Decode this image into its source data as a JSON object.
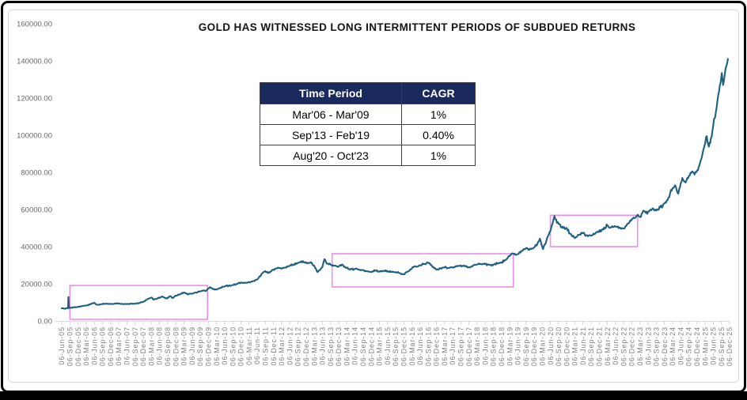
{
  "colors": {
    "line": "#1d6080",
    "highlight_box": "#f08be8",
    "table_header_bg": "#1b2a5e",
    "table_header_text": "#ffffff",
    "axis_label": "#7f7f7f",
    "y_label": "#666666",
    "frame_border": "#d9d9d9",
    "outer_border": "#000000"
  },
  "table": {
    "header": {
      "time_period": "Time Period",
      "cagr": "CAGR"
    },
    "rows": [
      {
        "period": "Mar'06 - Mar'09",
        "cagr": "1%"
      },
      {
        "period": "Sep'13 - Feb'19",
        "cagr": "0.40%"
      },
      {
        "period": "Aug'20 - Oct'23",
        "cagr": "1%"
      }
    ]
  },
  "chart_data": {
    "type": "line",
    "title": "GOLD HAS WITNESSED LONG INTERMITTENT PERIODS OF SUBDUED RETURNS",
    "xlabel": "",
    "ylabel": "",
    "ylim": [
      0,
      160000
    ],
    "grid": false,
    "legend": "none",
    "y_ticks": [
      [
        0,
        "0.00"
      ],
      [
        20000,
        "20000.00"
      ],
      [
        40000,
        "40000.00"
      ],
      [
        60000,
        "60000.00"
      ],
      [
        80000,
        "80000.00"
      ],
      [
        100000,
        "100000.00"
      ],
      [
        120000,
        "120000.00"
      ],
      [
        140000,
        "140000.00"
      ],
      [
        160000,
        "160000.00"
      ]
    ],
    "x_labels": [
      "06-Jun-05",
      "06-Sep-05",
      "06-Dec-05",
      "06-Mar-06",
      "06-Jun-06",
      "06-Sep-06",
      "06-Dec-06",
      "06-Mar-07",
      "06-Jun-07",
      "06-Sep-07",
      "06-Dec-07",
      "06-Mar-08",
      "06-Jun-08",
      "06-Sep-08",
      "06-Dec-08",
      "06-Mar-09",
      "06-Jun-09",
      "06-Sep-09",
      "06-Dec-09",
      "06-Mar-10",
      "06-Jun-10",
      "06-Sep-10",
      "06-Dec-10",
      "06-Mar-11",
      "06-Jun-11",
      "06-Sep-11",
      "06-Dec-11",
      "06-Mar-12",
      "06-Jun-12",
      "06-Sep-12",
      "06-Dec-12",
      "06-Mar-13",
      "06-Jun-13",
      "06-Sep-13",
      "06-Dec-13",
      "06-Mar-14",
      "06-Jun-14",
      "06-Sep-14",
      "06-Dec-14",
      "06-Mar-15",
      "06-Jun-15",
      "06-Sep-15",
      "06-Dec-15",
      "06-Mar-16",
      "06-Jun-16",
      "06-Sep-16",
      "06-Dec-16",
      "06-Mar-17",
      "06-Jun-17",
      "06-Sep-17",
      "06-Dec-17",
      "06-Mar-18",
      "06-Jun-18",
      "06-Sep-18",
      "06-Dec-18",
      "06-Mar-19",
      "06-Jun-19",
      "06-Sep-19",
      "06-Dec-19",
      "06-Mar-20",
      "06-Jun-20",
      "06-Sep-20",
      "06-Dec-20",
      "06-Mar-21",
      "06-Jun-21",
      "06-Sep-21",
      "06-Dec-21",
      "06-Mar-22",
      "06-Jun-22",
      "06-Sep-22",
      "06-Dec-22",
      "06-Mar-23",
      "06-Jun-23",
      "06-Sep-23",
      "06-Dec-23",
      "06-Mar-24",
      "06-Jun-24",
      "06-Sep-24",
      "06-Dec-24",
      "06-Mar-25",
      "06-Jun-25",
      "06-Sep-25",
      "06-Dec-25"
    ],
    "x_unit": "quarter index relative to 06-Jun-05",
    "highlight_boxes": [
      {
        "q0": 1.0,
        "q1": 17.9,
        "v_low": 850,
        "v_high": 19100
      },
      {
        "q0": 33.2,
        "q1": 55.45,
        "v_low": 18300,
        "v_high": 36200
      },
      {
        "q0": 60.0,
        "q1": 70.7,
        "v_low": 40000,
        "v_high": 56900
      }
    ],
    "series": [
      {
        "name": "gold-price",
        "anchors": [
          [
            0,
            6800
          ],
          [
            0.3,
            6600
          ],
          [
            0.6,
            6900
          ],
          [
            0.78,
            6900
          ],
          [
            0.82,
            12900
          ],
          [
            0.88,
            7000
          ],
          [
            1,
            7050
          ],
          [
            1.5,
            7300
          ],
          [
            2,
            7600
          ],
          [
            2.5,
            8000
          ],
          [
            3,
            8300
          ],
          [
            3.5,
            9000
          ],
          [
            4,
            9700
          ],
          [
            4.3,
            8700
          ],
          [
            5,
            9100
          ],
          [
            5.5,
            9250
          ],
          [
            6,
            9150
          ],
          [
            6.5,
            9300
          ],
          [
            7,
            9450
          ],
          [
            7.5,
            9050
          ],
          [
            8,
            9100
          ],
          [
            8.5,
            9350
          ],
          [
            9,
            9250
          ],
          [
            9.5,
            9700
          ],
          [
            10,
            10300
          ],
          [
            10.6,
            11900
          ],
          [
            11,
            12600
          ],
          [
            11.3,
            11500
          ],
          [
            11.7,
            12100
          ],
          [
            12,
            12400
          ],
          [
            12.4,
            13100
          ],
          [
            12.8,
            12100
          ],
          [
            13,
            12200
          ],
          [
            13.3,
            13300
          ],
          [
            13.6,
            12300
          ],
          [
            14,
            13600
          ],
          [
            14.5,
            14400
          ],
          [
            15,
            15300
          ],
          [
            15.4,
            14500
          ],
          [
            16,
            14700
          ],
          [
            16.5,
            15300
          ],
          [
            17,
            15900
          ],
          [
            17.4,
            16300
          ],
          [
            17.7,
            16100
          ],
          [
            18,
            17400
          ],
          [
            18.2,
            18200
          ],
          [
            18.6,
            17100
          ],
          [
            19,
            16900
          ],
          [
            19.5,
            17800
          ],
          [
            20,
            18600
          ],
          [
            20.5,
            19000
          ],
          [
            21,
            19300
          ],
          [
            21.5,
            20000
          ],
          [
            22,
            20700
          ],
          [
            22.5,
            20500
          ],
          [
            23,
            20900
          ],
          [
            23.5,
            21500
          ],
          [
            24,
            22300
          ],
          [
            24.6,
            25600
          ],
          [
            25,
            26800
          ],
          [
            25.3,
            25800
          ],
          [
            26,
            27700
          ],
          [
            26.5,
            28500
          ],
          [
            27,
            28100
          ],
          [
            27.5,
            28800
          ],
          [
            28,
            29700
          ],
          [
            28.5,
            30500
          ],
          [
            29,
            31200
          ],
          [
            29.4,
            32100
          ],
          [
            29.8,
            31500
          ],
          [
            30.2,
            31000
          ],
          [
            30.6,
            31600
          ],
          [
            31,
            29800
          ],
          [
            31.4,
            26300
          ],
          [
            31.7,
            27400
          ],
          [
            32,
            29000
          ],
          [
            32.25,
            33200
          ],
          [
            32.6,
            30800
          ],
          [
            33,
            30400
          ],
          [
            33.5,
            29800
          ],
          [
            34,
            29300
          ],
          [
            34.4,
            30400
          ],
          [
            35,
            28600
          ],
          [
            35.4,
            27600
          ],
          [
            36,
            28000
          ],
          [
            36.5,
            27500
          ],
          [
            37,
            27300
          ],
          [
            37.5,
            26700
          ],
          [
            38,
            26400
          ],
          [
            38.4,
            27400
          ],
          [
            39,
            26600
          ],
          [
            39.5,
            27000
          ],
          [
            40,
            26900
          ],
          [
            40.5,
            26400
          ],
          [
            41,
            26300
          ],
          [
            41.5,
            25700
          ],
          [
            42,
            25100
          ],
          [
            42.5,
            26600
          ],
          [
            43,
            28400
          ],
          [
            43.5,
            29300
          ],
          [
            44,
            30000
          ],
          [
            44.5,
            30700
          ],
          [
            45,
            31200
          ],
          [
            45.4,
            30100
          ],
          [
            46,
            27600
          ],
          [
            46.5,
            28300
          ],
          [
            47,
            28800
          ],
          [
            47.5,
            28500
          ],
          [
            48,
            28700
          ],
          [
            48.5,
            29300
          ],
          [
            49,
            29900
          ],
          [
            49.5,
            29400
          ],
          [
            50,
            28900
          ],
          [
            50.5,
            29800
          ],
          [
            51,
            30400
          ],
          [
            51.5,
            30700
          ],
          [
            52,
            30600
          ],
          [
            52.5,
            30200
          ],
          [
            53,
            30400
          ],
          [
            53.5,
            31000
          ],
          [
            54,
            31500
          ],
          [
            54.5,
            32800
          ],
          [
            55,
            35000
          ],
          [
            55.4,
            36300
          ],
          [
            55.7,
            35600
          ],
          [
            56,
            36000
          ],
          [
            56.5,
            37600
          ],
          [
            57,
            39200
          ],
          [
            57.4,
            38300
          ],
          [
            58,
            39600
          ],
          [
            58.4,
            41500
          ],
          [
            58.7,
            44300
          ],
          [
            59.1,
            38700
          ],
          [
            59.5,
            43000
          ],
          [
            60,
            48500
          ],
          [
            60.5,
            56500
          ],
          [
            60.8,
            52800
          ],
          [
            61,
            52200
          ],
          [
            61.4,
            50300
          ],
          [
            62,
            50100
          ],
          [
            62.4,
            47000
          ],
          [
            63,
            44600
          ],
          [
            63.4,
            46400
          ],
          [
            64,
            47300
          ],
          [
            64.4,
            46100
          ],
          [
            65,
            45900
          ],
          [
            65.5,
            47000
          ],
          [
            66,
            47900
          ],
          [
            66.5,
            49200
          ],
          [
            67,
            51500
          ],
          [
            67.3,
            50100
          ],
          [
            68,
            50900
          ],
          [
            68.5,
            50200
          ],
          [
            69,
            49800
          ],
          [
            69.5,
            52400
          ],
          [
            70,
            54800
          ],
          [
            70.4,
            55400
          ],
          [
            70.75,
            57200
          ],
          [
            71.1,
            55900
          ],
          [
            71.4,
            59300
          ],
          [
            71.7,
            58200
          ],
          [
            72,
            58800
          ],
          [
            72.5,
            60300
          ],
          [
            73,
            59500
          ],
          [
            73.5,
            61200
          ],
          [
            74,
            63200
          ],
          [
            74.5,
            66500
          ],
          [
            75,
            71500
          ],
          [
            75.3,
            73000
          ],
          [
            75.7,
            68500
          ],
          [
            76.2,
            77000
          ],
          [
            76.6,
            74500
          ],
          [
            77,
            78000
          ],
          [
            77.4,
            80500
          ],
          [
            77.7,
            78800
          ],
          [
            78,
            81000
          ],
          [
            78.4,
            85500
          ],
          [
            78.7,
            90500
          ],
          [
            79,
            95500
          ],
          [
            79.2,
            99500
          ],
          [
            79.45,
            93800
          ],
          [
            79.7,
            98200
          ],
          [
            80,
            105500
          ],
          [
            80.3,
            112000
          ],
          [
            80.6,
            121500
          ],
          [
            80.9,
            128500
          ],
          [
            81.05,
            133500
          ],
          [
            81.2,
            127000
          ],
          [
            81.4,
            132500
          ],
          [
            81.6,
            137200
          ],
          [
            81.8,
            141000
          ]
        ]
      }
    ]
  }
}
